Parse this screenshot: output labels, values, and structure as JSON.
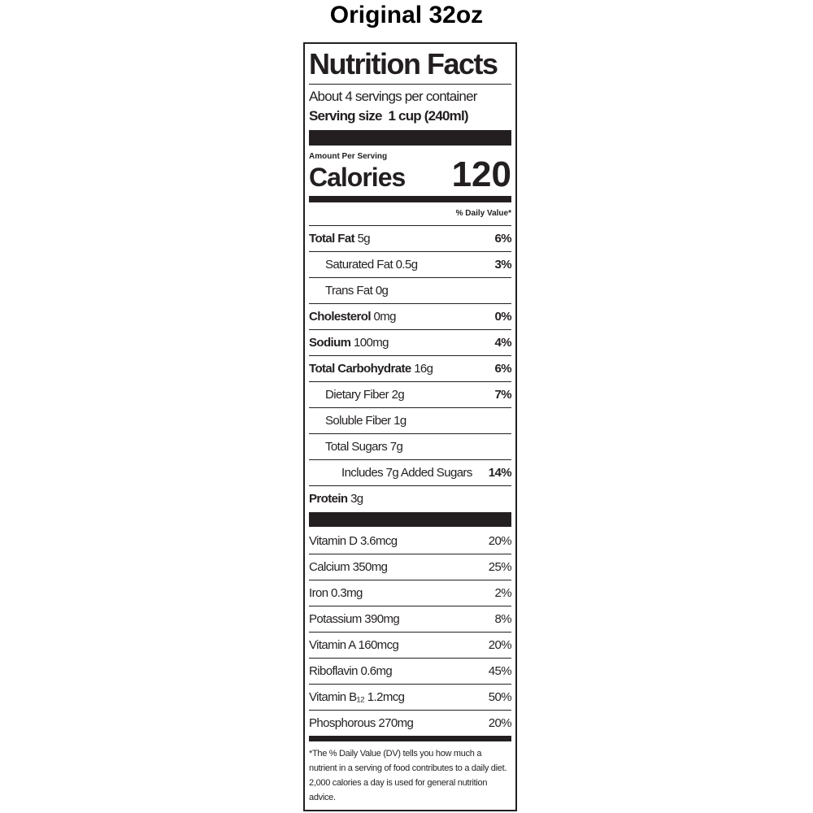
{
  "title": "Original 32oz",
  "label": {
    "heading": "Nutrition Facts",
    "servings": "About 4 servings per container",
    "serving_size_label": "Serving size",
    "serving_size": "1 cup (240ml)",
    "amount_per_serving": "Amount Per Serving",
    "calories_label": "Calories",
    "calories": 120,
    "dv_header": "% Daily Value*",
    "nutrients": [
      {
        "name": "Total Fat",
        "amount": "5g",
        "dv": "6%"
      },
      {
        "name": "Saturated Fat",
        "amount": "0.5g",
        "dv": "3%"
      },
      {
        "name": "Trans Fat",
        "amount": "0g"
      },
      {
        "name": "Cholesterol",
        "amount": "0mg",
        "dv": "0%"
      },
      {
        "name": "Sodium",
        "amount": "100mg",
        "dv": "4%"
      },
      {
        "name": "Total Carbohydrate",
        "amount": "16g",
        "dv": "6%"
      },
      {
        "name": "Dietary Fiber",
        "amount": "2g",
        "dv": "7%"
      },
      {
        "name": "Soluble Fiber",
        "amount": "1g"
      },
      {
        "name": "Total Sugars",
        "amount": "7g"
      },
      {
        "name": "Includes 7g Added Sugars",
        "dv": "14%"
      },
      {
        "name": "Protein",
        "amount": "3g"
      }
    ],
    "vitamins": [
      {
        "name": "Vitamin D",
        "amount": "3.6mcg",
        "dv": "20%"
      },
      {
        "name": "Calcium",
        "amount": "350mg",
        "dv": "25%"
      },
      {
        "name": "Iron",
        "amount": "0.3mg",
        "dv": "2%"
      },
      {
        "name": "Potassium",
        "amount": "390mg",
        "dv": "8%"
      },
      {
        "name": "Vitamin A",
        "amount": "160mcg",
        "dv": "20%"
      },
      {
        "name": "Riboflavin",
        "amount": "0.6mg",
        "dv": "45%"
      },
      {
        "name": "Vitamin B₁₂",
        "amount": "1.2mcg",
        "dv": "50%"
      },
      {
        "name": "Phosphorous",
        "amount": "270mg",
        "dv": "20%"
      }
    ],
    "footnote": "*The % Daily Value (DV) tells you how much a nutrient in a serving of food contributes to a daily diet. 2,000 calories a day is used for general nutrition advice."
  }
}
